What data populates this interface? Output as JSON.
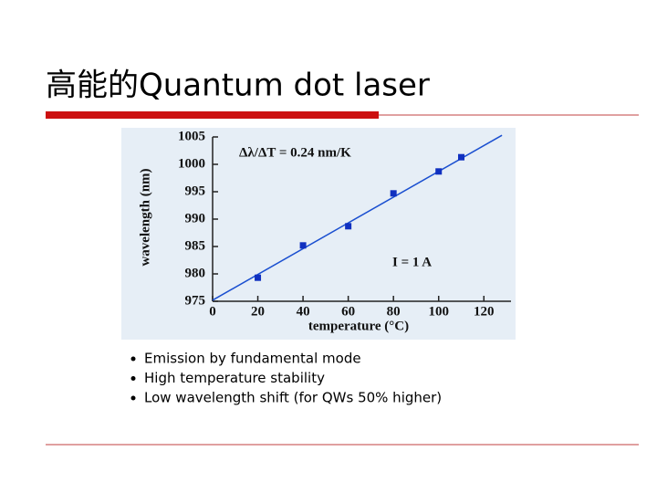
{
  "slide": {
    "title": "高能的Quantum dot laser",
    "bullets": [
      "Emission by fundamental mode",
      "High temperature stability",
      "Low wavelength shift (for QWs 50% higher)"
    ]
  },
  "chart_data": {
    "type": "scatter",
    "x_label": "temperature (°C)",
    "y_label": "wavelength (nm)",
    "annotations": [
      "Δλ/ΔT = 0.24 nm/K",
      "I = 1 A"
    ],
    "series": [
      {
        "color": "#1030c0",
        "x": [
          20,
          40,
          60,
          80,
          100,
          110
        ],
        "values": [
          979.3,
          985.2,
          988.7,
          994.7,
          998.7,
          1001.3
        ]
      }
    ],
    "fit": {
      "color": "#1a4fd0",
      "x": [
        0,
        128
      ],
      "values": [
        975.2,
        1005.3
      ]
    },
    "xlim": [
      0,
      132
    ],
    "xticks": [
      0,
      20,
      40,
      60,
      80,
      100,
      120
    ],
    "ylim": [
      975,
      1005
    ],
    "yticks": [
      975,
      980,
      985,
      990,
      995,
      1000,
      1005
    ]
  }
}
